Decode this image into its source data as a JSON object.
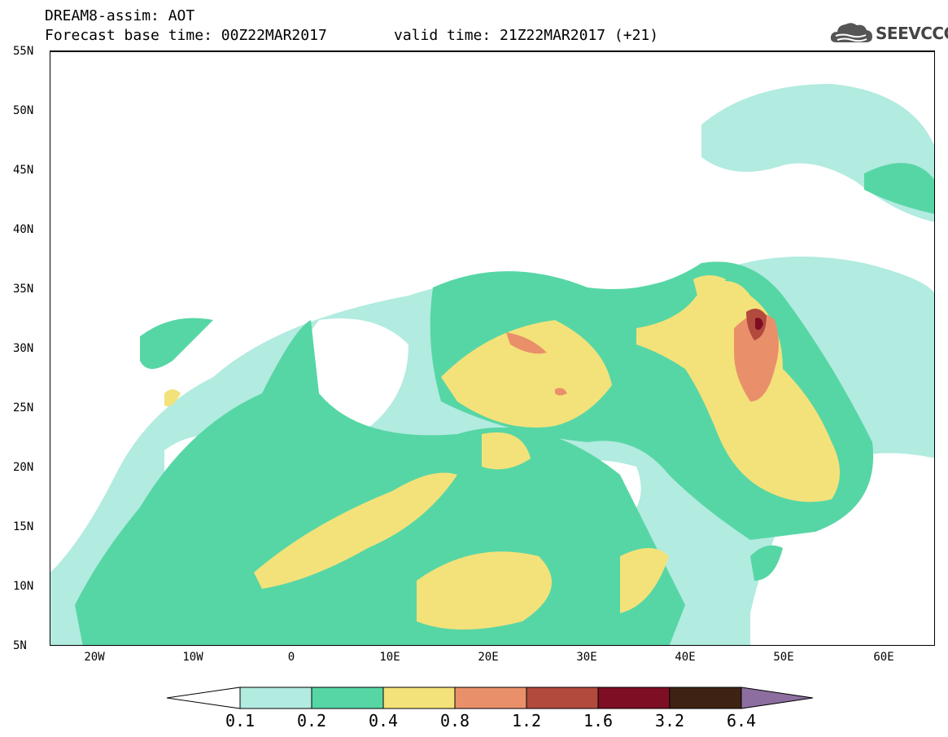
{
  "header": {
    "line1": "DREAM8-assim: AOT",
    "base_time": "Forecast base time: 00Z22MAR2017",
    "valid_time": "valid time: 21Z22MAR2017 (+21)",
    "logo_text": "SEEVCCC",
    "logo_icon": "cloud-icon"
  },
  "map": {
    "lon_range": [
      -25,
      65
    ],
    "lat_range": [
      5,
      55
    ],
    "lat_labels": [
      "55N",
      "50N",
      "45N",
      "40N",
      "35N",
      "30N",
      "25N",
      "20N",
      "15N",
      "10N",
      "5N"
    ],
    "lon_labels": [
      "20W",
      "10W",
      "0",
      "10E",
      "20E",
      "30E",
      "40E",
      "50E",
      "60E"
    ]
  },
  "colorbar": {
    "levels": [
      "0.1",
      "0.2",
      "0.4",
      "0.8",
      "1.2",
      "1.6",
      "3.2",
      "6.4"
    ],
    "colors": [
      "#ffffff",
      "#b2ebe0",
      "#57d6a5",
      "#f3e27a",
      "#e9906a",
      "#b24a3e",
      "#7d0e24",
      "#3e2314",
      "#8c6ea0"
    ]
  }
}
